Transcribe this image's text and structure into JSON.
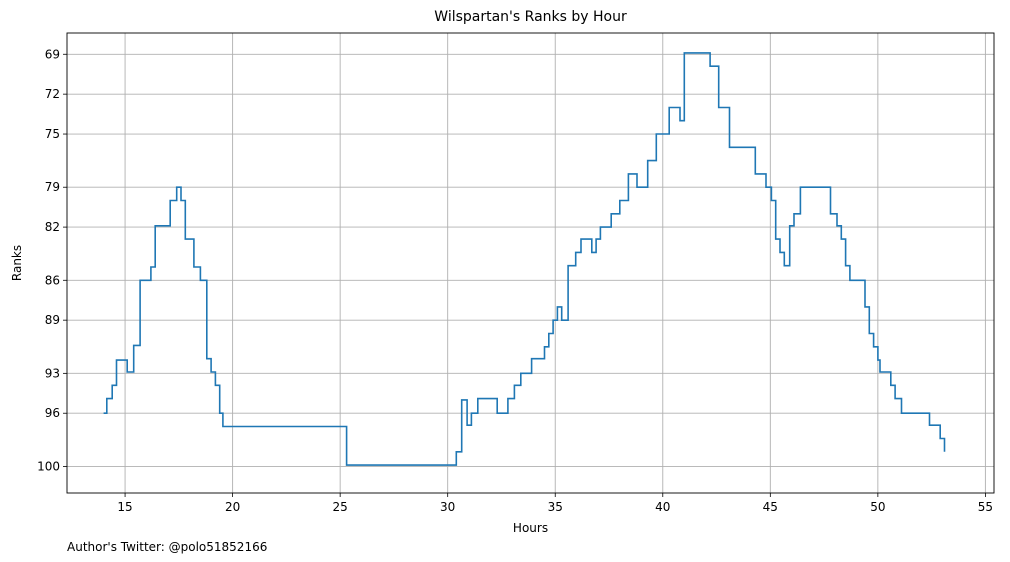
{
  "footer_text": "Author's Twitter: @polo51852166",
  "chart_data": {
    "type": "line",
    "step": true,
    "title": "Wilspartan's Ranks by Hour",
    "xlabel": "Hours",
    "ylabel": "Ranks",
    "xlim": [
      12.3,
      55.4
    ],
    "ylim": [
      102.0,
      67.4
    ],
    "y_inverted": true,
    "xticks": [
      15,
      20,
      25,
      30,
      35,
      40,
      45,
      50,
      55
    ],
    "yticks": [
      69,
      72,
      75,
      79,
      82,
      86,
      89,
      93,
      96,
      100
    ],
    "grid": true,
    "color": "#1f77b4",
    "series": [
      {
        "x": [
          14.0,
          14.15,
          14.4,
          14.6,
          15.1,
          15.4,
          15.7,
          16.2,
          16.4,
          17.1,
          17.4,
          17.6,
          17.8,
          18.2,
          18.5,
          18.8,
          19.0,
          19.2,
          19.4,
          19.55,
          20.1,
          25.3,
          30.4,
          30.65,
          30.9,
          31.1,
          31.4,
          31.6,
          32.3,
          32.8,
          33.1,
          33.4,
          33.9,
          34.5,
          34.7,
          34.9,
          35.1,
          35.3,
          35.6,
          35.95,
          36.2,
          36.7,
          36.9,
          37.1,
          37.6,
          38.0,
          38.4,
          38.8,
          39.3,
          39.7,
          40.3,
          40.8,
          41.0,
          42.2,
          42.6,
          43.1,
          43.3,
          44.3,
          44.8,
          45.05,
          45.25,
          45.45,
          45.65,
          45.9,
          46.1,
          46.4,
          47.1,
          47.8,
          48.1,
          48.3,
          48.5,
          48.7,
          48.9,
          49.4,
          49.6,
          49.8,
          50.0,
          50.1,
          50.6,
          50.8,
          51.1,
          52.4,
          52.9,
          53.1
        ],
        "y": [
          96.0,
          94.9,
          93.9,
          92.0,
          92.9,
          90.9,
          86.0,
          85.0,
          81.9,
          80.0,
          79.0,
          80.0,
          82.9,
          85.0,
          86.0,
          91.9,
          92.9,
          93.9,
          96.0,
          97.0,
          97.0,
          99.9,
          98.9,
          95.0,
          96.9,
          96.0,
          94.9,
          94.9,
          96.0,
          94.9,
          93.9,
          93.0,
          91.9,
          91.0,
          90.0,
          89.0,
          88.0,
          89.0,
          84.9,
          83.9,
          82.9,
          83.9,
          82.9,
          82.0,
          81.0,
          80.0,
          78.0,
          79.0,
          77.0,
          75.0,
          73.0,
          74.0,
          68.9,
          69.9,
          73.0,
          76.0,
          76.0,
          78.0,
          79.0,
          80.0,
          82.9,
          83.9,
          84.9,
          81.9,
          81.0,
          79.0,
          79.0,
          81.0,
          81.9,
          82.9,
          84.9,
          86.0,
          86.0,
          88.0,
          90.0,
          91.0,
          92.0,
          92.9,
          93.9,
          94.9,
          96.0,
          96.9,
          97.9,
          98.9
        ]
      }
    ]
  }
}
